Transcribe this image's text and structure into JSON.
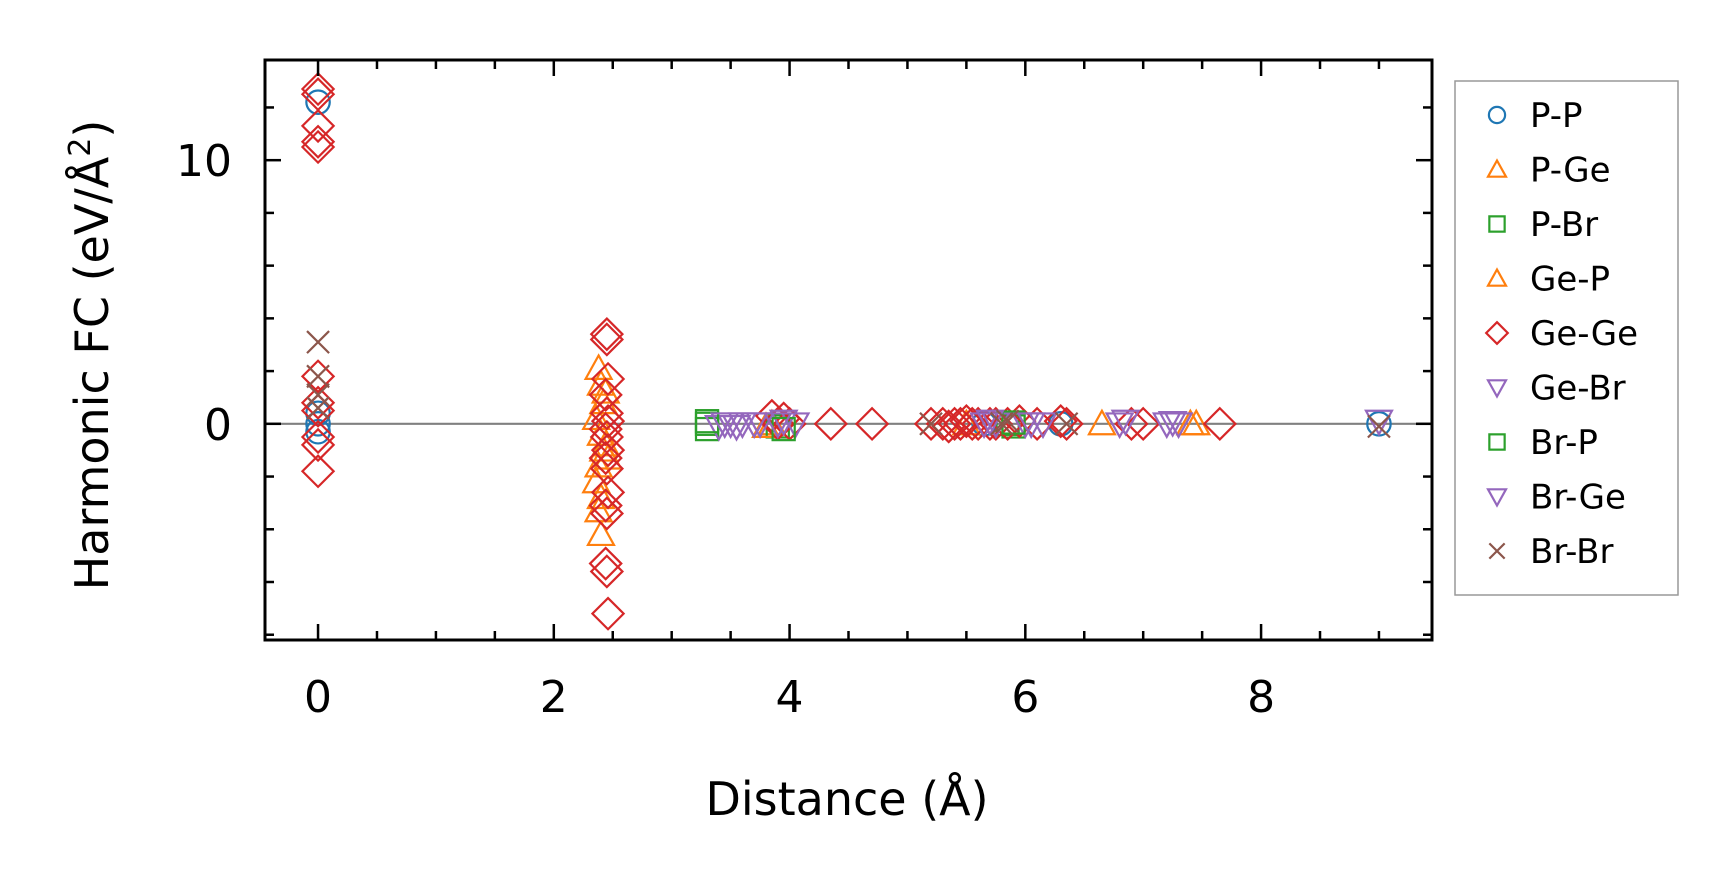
{
  "chart_data": {
    "type": "scatter",
    "title": "",
    "xlabel": "Distance (Å)",
    "ylabel_main": "Harmonic FC (eV/Å",
    "ylabel_sup": "2",
    "ylabel_close": ")",
    "xlim": [
      -0.45,
      9.45
    ],
    "ylim": [
      -8.2,
      13.8
    ],
    "xticks": [
      0,
      2,
      4,
      6,
      8
    ],
    "xtick_labels": [
      "0",
      "2",
      "4",
      "6",
      "8"
    ],
    "yticks": [
      0,
      10
    ],
    "ytick_labels": [
      "0",
      "10"
    ],
    "x_minor_step": 0.5,
    "y_minor_step": 2,
    "reference_line_y": 0,
    "grid": false,
    "legend_position": "right-outside",
    "series": [
      {
        "name": "P-P",
        "marker": "circle",
        "color": "#1f77b4",
        "points": [
          [
            0.0,
            12.2
          ],
          [
            0.0,
            0.4
          ],
          [
            0.0,
            0.0
          ],
          [
            0.0,
            -0.3
          ],
          [
            5.65,
            0.0
          ],
          [
            6.3,
            0.0
          ],
          [
            9.0,
            0.0
          ]
        ]
      },
      {
        "name": "P-Ge",
        "marker": "triangle-up",
        "color": "#ff7f0e",
        "points": [
          [
            2.38,
            2.1
          ],
          [
            2.4,
            1.5
          ],
          [
            2.42,
            0.8
          ],
          [
            2.36,
            0.2
          ],
          [
            2.4,
            -0.4
          ],
          [
            2.42,
            -1.0
          ],
          [
            2.38,
            -1.6
          ],
          [
            2.36,
            -2.2
          ],
          [
            2.4,
            -2.8
          ],
          [
            2.38,
            -3.3
          ],
          [
            2.4,
            -4.2
          ],
          [
            3.85,
            0.0
          ],
          [
            5.5,
            0.0
          ],
          [
            6.65,
            0.0
          ],
          [
            7.45,
            0.0
          ]
        ]
      },
      {
        "name": "P-Br",
        "marker": "square",
        "color": "#2ca02c",
        "points": [
          [
            3.3,
            0.0
          ],
          [
            3.3,
            -0.2
          ],
          [
            3.9,
            -0.1
          ],
          [
            5.85,
            0.0
          ],
          [
            5.9,
            -0.1
          ]
        ]
      },
      {
        "name": "Ge-P",
        "marker": "triangle-up",
        "color": "#ff7f0e",
        "points": [
          [
            2.44,
            1.2
          ],
          [
            2.44,
            -0.8
          ],
          [
            2.46,
            -1.3
          ],
          [
            3.8,
            -0.1
          ],
          [
            7.4,
            0.0
          ]
        ]
      },
      {
        "name": "Ge-Ge",
        "marker": "diamond",
        "color": "#d62728",
        "points": [
          [
            0.0,
            12.7
          ],
          [
            0.0,
            12.5
          ],
          [
            0.0,
            11.3
          ],
          [
            0.0,
            10.7
          ],
          [
            0.0,
            10.5
          ],
          [
            0.0,
            1.8
          ],
          [
            0.0,
            0.8
          ],
          [
            0.0,
            0.5
          ],
          [
            0.0,
            -0.5
          ],
          [
            0.0,
            -0.8
          ],
          [
            0.0,
            -1.8
          ],
          [
            2.45,
            3.4
          ],
          [
            2.45,
            3.2
          ],
          [
            2.46,
            1.7
          ],
          [
            2.44,
            1.1
          ],
          [
            2.45,
            0.4
          ],
          [
            2.46,
            0.1
          ],
          [
            2.44,
            -0.2
          ],
          [
            2.45,
            -0.5
          ],
          [
            2.46,
            -1.0
          ],
          [
            2.44,
            -1.3
          ],
          [
            2.45,
            -1.7
          ],
          [
            2.46,
            -2.6
          ],
          [
            2.44,
            -3.1
          ],
          [
            2.45,
            -3.4
          ],
          [
            2.44,
            -5.3
          ],
          [
            2.45,
            -5.6
          ],
          [
            2.46,
            -7.2
          ],
          [
            3.85,
            0.3
          ],
          [
            3.9,
            0.0
          ],
          [
            3.95,
            0.2
          ],
          [
            4.0,
            0.0
          ],
          [
            4.35,
            0.0
          ],
          [
            4.7,
            0.0
          ],
          [
            5.2,
            0.0
          ],
          [
            5.3,
            0.0
          ],
          [
            5.35,
            -0.1
          ],
          [
            5.4,
            0.0
          ],
          [
            5.45,
            0.0
          ],
          [
            5.5,
            0.1
          ],
          [
            5.55,
            0.0
          ],
          [
            5.6,
            0.0
          ],
          [
            5.7,
            0.0
          ],
          [
            5.75,
            0.0
          ],
          [
            5.85,
            0.0
          ],
          [
            5.95,
            0.1
          ],
          [
            6.1,
            0.0
          ],
          [
            6.3,
            0.1
          ],
          [
            6.35,
            0.0
          ],
          [
            6.9,
            0.0
          ],
          [
            7.0,
            0.0
          ],
          [
            7.65,
            0.0
          ]
        ]
      },
      {
        "name": "Ge-Br",
        "marker": "triangle-down",
        "color": "#9467bd",
        "points": [
          [
            3.4,
            -0.1
          ],
          [
            3.5,
            0.0
          ],
          [
            3.55,
            -0.1
          ],
          [
            3.7,
            0.0
          ],
          [
            3.95,
            0.1
          ],
          [
            4.05,
            0.0
          ],
          [
            5.65,
            0.0
          ],
          [
            5.75,
            0.0
          ],
          [
            6.0,
            0.0
          ],
          [
            6.15,
            0.0
          ],
          [
            6.8,
            0.0
          ],
          [
            7.2,
            0.0
          ],
          [
            7.3,
            0.0
          ],
          [
            9.0,
            0.1
          ]
        ]
      },
      {
        "name": "Br-P",
        "marker": "square",
        "color": "#2ca02c",
        "points": [
          [
            3.3,
            0.1
          ],
          [
            3.95,
            -0.2
          ],
          [
            5.9,
            0.05
          ]
        ]
      },
      {
        "name": "Br-Ge",
        "marker": "triangle-down",
        "color": "#9467bd",
        "points": [
          [
            3.45,
            0.0
          ],
          [
            3.6,
            0.0
          ],
          [
            3.75,
            0.0
          ],
          [
            3.9,
            0.0
          ],
          [
            5.7,
            0.1
          ],
          [
            6.05,
            0.0
          ],
          [
            6.85,
            0.1
          ],
          [
            7.25,
            0.05
          ]
        ]
      },
      {
        "name": "Br-Br",
        "marker": "x",
        "color": "#8c564b",
        "points": [
          [
            0.0,
            3.1
          ],
          [
            0.0,
            1.8
          ],
          [
            0.0,
            1.1
          ],
          [
            0.0,
            0.6
          ],
          [
            5.2,
            0.0
          ],
          [
            5.8,
            0.0
          ],
          [
            5.85,
            0.1
          ],
          [
            6.35,
            0.0
          ],
          [
            9.0,
            -0.1
          ]
        ]
      }
    ]
  }
}
